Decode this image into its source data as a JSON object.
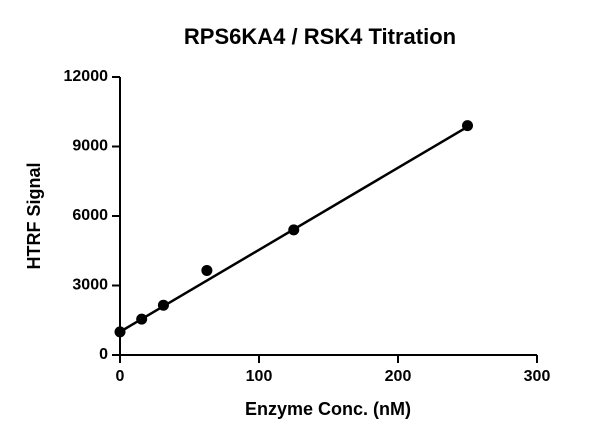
{
  "chart_data": {
    "type": "scatter",
    "title": "RPS6KA4 / RSK4 Titration",
    "x_label": "Enzyme Conc. (nM)",
    "y_label": "HTRF Signal",
    "series": [
      {
        "x": [
          0,
          15.6,
          31.25,
          62.5,
          125,
          250
        ],
        "values": [
          1000,
          1550,
          2150,
          3650,
          5400,
          9900
        ],
        "color": "#000000"
      }
    ],
    "fit_line": {
      "x": [
        0,
        250
      ],
      "values": [
        1000,
        9850
      ],
      "color": "#000000"
    },
    "xlim": [
      0,
      300
    ],
    "xticks": [
      0,
      100,
      200,
      300
    ],
    "ylim": [
      0,
      12000
    ],
    "yticks": [
      0,
      3000,
      6000,
      9000,
      12000
    ]
  }
}
